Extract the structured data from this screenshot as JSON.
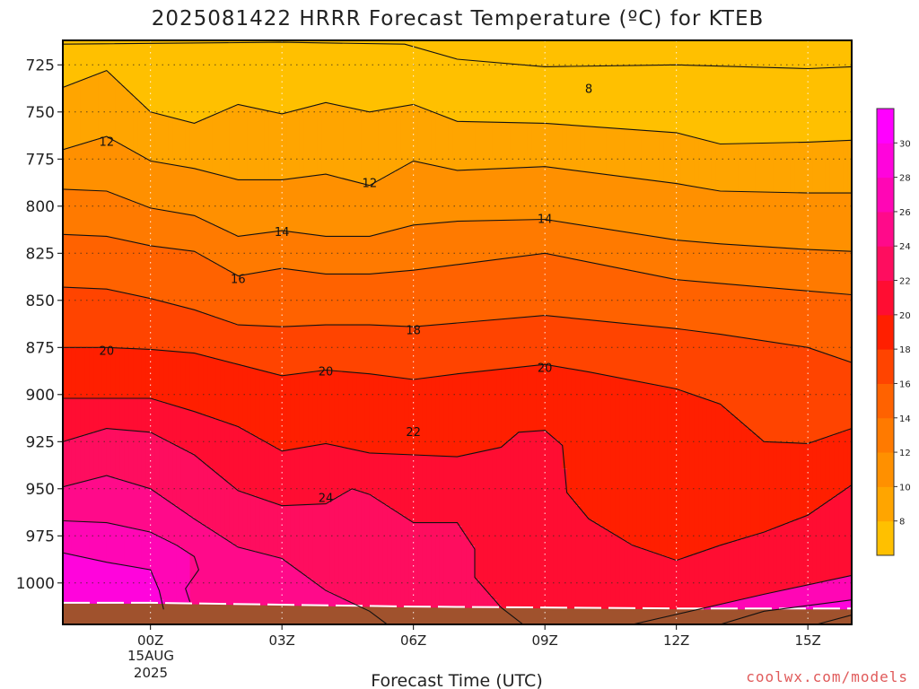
{
  "chart_data": {
    "type": "heatmap",
    "title": "2025081422 HRRR Forecast Temperature (ºC) for KTEB",
    "xlabel": "Forecast Time (UTC)",
    "ylabel": "",
    "credit": "coolwx.com/models",
    "y_axis": {
      "ticks": [
        725,
        750,
        775,
        800,
        825,
        850,
        875,
        900,
        925,
        950,
        975,
        1000
      ],
      "range": [
        712,
        1022
      ],
      "reversed": true
    },
    "x_axis": {
      "range": [
        -2,
        16
      ],
      "ticks": [
        {
          "value": 0,
          "label": "00Z"
        },
        {
          "value": 3,
          "label": "03Z"
        },
        {
          "value": 6,
          "label": "06Z"
        },
        {
          "value": 9,
          "label": "09Z"
        },
        {
          "value": 12,
          "label": "12Z"
        },
        {
          "value": 15,
          "label": "15Z"
        }
      ],
      "date_lines": [
        "15AUG",
        "2025"
      ]
    },
    "grid": true,
    "colorbar": {
      "levels": [
        8,
        10,
        12,
        14,
        16,
        18,
        20,
        22,
        24,
        26,
        28,
        30
      ],
      "colors": [
        "#ffc000",
        "#ffa500",
        "#ff9000",
        "#ff7a00",
        "#ff6200",
        "#ff4400",
        "#ff1f00",
        "#ff0d32",
        "#fe0d5f",
        "#ff0a8a",
        "#ff06b5",
        "#ff04dc",
        "#ff00ff"
      ]
    },
    "series": [
      {
        "level": 6,
        "points": [
          [
            -2,
            714
          ],
          [
            3,
            713
          ],
          [
            5.8,
            714
          ],
          [
            7,
            722
          ],
          [
            9,
            726
          ],
          [
            12,
            725
          ],
          [
            15,
            727
          ],
          [
            16,
            726
          ]
        ]
      },
      {
        "level": 8,
        "points": [
          [
            -2,
            737
          ],
          [
            -1,
            728
          ],
          [
            0,
            750
          ],
          [
            1,
            756
          ],
          [
            2,
            746
          ],
          [
            3,
            751
          ],
          [
            4,
            745
          ],
          [
            5,
            750
          ],
          [
            6,
            746
          ],
          [
            7,
            755
          ],
          [
            9,
            756
          ],
          [
            12,
            761
          ],
          [
            13,
            767
          ],
          [
            15,
            766
          ],
          [
            16,
            765
          ]
        ]
      },
      {
        "level": 10,
        "points": [
          [
            -2,
            770
          ],
          [
            -1,
            763
          ],
          [
            0,
            776
          ],
          [
            1,
            780
          ],
          [
            2,
            786
          ],
          [
            3,
            786
          ],
          [
            4,
            783
          ],
          [
            5,
            789
          ],
          [
            6,
            776
          ],
          [
            7,
            781
          ],
          [
            9,
            779
          ],
          [
            12,
            788
          ],
          [
            13,
            792
          ],
          [
            15,
            793
          ],
          [
            16,
            793
          ]
        ]
      },
      {
        "level": 12,
        "points": [
          [
            -2,
            791
          ],
          [
            -1,
            792
          ],
          [
            0,
            801
          ],
          [
            1,
            805
          ],
          [
            2,
            816
          ],
          [
            3,
            813
          ],
          [
            4,
            816
          ],
          [
            5,
            816
          ],
          [
            6,
            810
          ],
          [
            7,
            808
          ],
          [
            9,
            807
          ],
          [
            12,
            818
          ],
          [
            13,
            820
          ],
          [
            15,
            823
          ],
          [
            16,
            824
          ]
        ]
      },
      {
        "level": 14,
        "points": [
          [
            -2,
            815
          ],
          [
            -1,
            816
          ],
          [
            0,
            821
          ],
          [
            1,
            824
          ],
          [
            2,
            837
          ],
          [
            3,
            833
          ],
          [
            4,
            836
          ],
          [
            5,
            836
          ],
          [
            6,
            834
          ],
          [
            7,
            831
          ],
          [
            9,
            825
          ],
          [
            12,
            839
          ],
          [
            13,
            841
          ],
          [
            15,
            845
          ],
          [
            16,
            847
          ]
        ]
      },
      {
        "level": 16,
        "points": [
          [
            -2,
            843
          ],
          [
            -1,
            844
          ],
          [
            0,
            849
          ],
          [
            1,
            855
          ],
          [
            2,
            863
          ],
          [
            3,
            864
          ],
          [
            4,
            863
          ],
          [
            5,
            863
          ],
          [
            6,
            864
          ],
          [
            7,
            862
          ],
          [
            9,
            858
          ],
          [
            12,
            865
          ],
          [
            13,
            868
          ],
          [
            15,
            875
          ],
          [
            16,
            883
          ]
        ]
      },
      {
        "level": 18,
        "points": [
          [
            -2,
            875
          ],
          [
            -1,
            875
          ],
          [
            0,
            876
          ],
          [
            1,
            878
          ],
          [
            2,
            884
          ],
          [
            3,
            890
          ],
          [
            4,
            887
          ],
          [
            5,
            889
          ],
          [
            6,
            892
          ],
          [
            7,
            889
          ],
          [
            9,
            884
          ],
          [
            10,
            888
          ],
          [
            12,
            897
          ],
          [
            13,
            905
          ],
          [
            14,
            925
          ],
          [
            15,
            926
          ],
          [
            16,
            918
          ]
        ]
      },
      {
        "level": 20,
        "points": [
          [
            -2,
            902
          ],
          [
            -1,
            902
          ],
          [
            0,
            902
          ],
          [
            1,
            909
          ],
          [
            2,
            917
          ],
          [
            3,
            930
          ],
          [
            4,
            926
          ],
          [
            5,
            931
          ],
          [
            6,
            932
          ],
          [
            7,
            933
          ],
          [
            8,
            928
          ],
          [
            8.4,
            920
          ],
          [
            9,
            919
          ],
          [
            9.4,
            927
          ],
          [
            9.5,
            952
          ],
          [
            10,
            966
          ],
          [
            11,
            980
          ],
          [
            12,
            988
          ],
          [
            13,
            980
          ],
          [
            14,
            973
          ],
          [
            15,
            964
          ],
          [
            16,
            948
          ]
        ]
      },
      {
        "level": 22,
        "points": [
          [
            -2,
            925
          ],
          [
            -1,
            918
          ],
          [
            0,
            920
          ],
          [
            1,
            932
          ],
          [
            2,
            951
          ],
          [
            3,
            959
          ],
          [
            4,
            958
          ],
          [
            4.6,
            950
          ],
          [
            5,
            953
          ],
          [
            6,
            968
          ],
          [
            7,
            968
          ],
          [
            7.4,
            982
          ],
          [
            7.4,
            997
          ],
          [
            8,
            1013
          ],
          [
            8.5,
            1022
          ]
        ]
      },
      {
        "level": 24,
        "points": [
          [
            -2,
            949
          ],
          [
            -1,
            943
          ],
          [
            0,
            950
          ],
          [
            1,
            966
          ],
          [
            2,
            981
          ],
          [
            3,
            987
          ],
          [
            4,
            1004
          ],
          [
            5,
            1015
          ],
          [
            5.4,
            1022
          ]
        ]
      },
      {
        "level": 26,
        "points": [
          [
            -2,
            967
          ],
          [
            -1,
            968
          ],
          [
            0,
            973
          ],
          [
            0.6,
            980
          ],
          [
            1,
            986
          ],
          [
            1.1,
            993
          ],
          [
            0.8,
            1003
          ],
          [
            0.9,
            1010
          ]
        ]
      },
      {
        "level": 28,
        "points": [
          [
            -2,
            984
          ],
          [
            -1,
            989
          ],
          [
            0,
            993
          ],
          [
            0.2,
            1004
          ],
          [
            0.3,
            1014
          ]
        ]
      },
      {
        "level": 26,
        "points": [
          [
            11,
            1022
          ],
          [
            14,
            1006
          ],
          [
            16,
            996
          ]
        ]
      },
      {
        "level": 28,
        "points": [
          [
            13,
            1022
          ],
          [
            14,
            1015
          ],
          [
            16,
            1009
          ]
        ]
      },
      {
        "level": 30,
        "points": [
          [
            15.2,
            1022
          ],
          [
            16,
            1017
          ]
        ]
      }
    ],
    "contour_labels": [
      {
        "text": "8",
        "x": 10,
        "p": 738
      },
      {
        "text": "12",
        "x": -1,
        "p": 766
      },
      {
        "text": "12",
        "x": 5,
        "p": 788
      },
      {
        "text": "14",
        "x": 3,
        "p": 814
      },
      {
        "text": "14",
        "x": 9,
        "p": 807
      },
      {
        "text": "16",
        "x": 2,
        "p": 839
      },
      {
        "text": "18",
        "x": 6,
        "p": 866
      },
      {
        "text": "20",
        "x": -1,
        "p": 877
      },
      {
        "text": "20",
        "x": 4,
        "p": 888
      },
      {
        "text": "20",
        "x": 9,
        "p": 886
      },
      {
        "text": "22",
        "x": 6,
        "p": 920
      },
      {
        "text": "24",
        "x": 4,
        "p": 955
      }
    ],
    "surface": {
      "color": "#a0522d",
      "points": [
        [
          -2,
          1011
        ],
        [
          0,
          1011
        ],
        [
          6,
          1013
        ],
        [
          12,
          1014
        ],
        [
          16,
          1014
        ]
      ]
    }
  }
}
